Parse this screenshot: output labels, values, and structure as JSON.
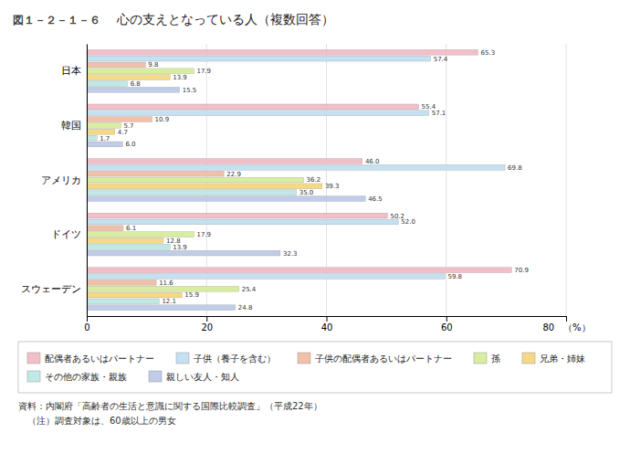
{
  "chart_data": {
    "type": "bar",
    "orientation": "horizontal",
    "title": "心の支えとなっている人（複数回答）",
    "subtitle": "図１－２－１－６",
    "annotations": [
      "資料：内閣府「高齢者の生活と意識に関する国際比較調査」（平成22年）",
      "　（注）調査対象は、60歳以上の男女"
    ],
    "categories": [
      "日本",
      "韓国",
      "アメリカ",
      "ドイツ",
      "スウェーデン"
    ],
    "series": [
      {
        "name": "配偶者あるいはパートナー",
        "color": "#f2bec8",
        "values": [
          65.3,
          55.4,
          46.0,
          50.2,
          70.9
        ],
        "value_labels": [
          "65.3",
          "55.4",
          "46.0",
          "50.2",
          "70.9"
        ]
      },
      {
        "name": "子供（養子を含む）",
        "color": "#c5e0f0",
        "values": [
          57.4,
          57.1,
          69.8,
          52.0,
          59.8
        ],
        "value_labels": [
          "57.4",
          "57.1",
          "69.8",
          "52.0",
          "59.8"
        ]
      },
      {
        "name": "子供の配偶者あるいはパートナー",
        "color": "#f0c0a8",
        "values": [
          9.8,
          10.9,
          22.9,
          6.1,
          11.6
        ],
        "value_labels": [
          "9.8",
          "10.9",
          "22.9",
          "6.1",
          "11.6"
        ]
      },
      {
        "name": "孫",
        "color": "#d8eda0",
        "values": [
          17.9,
          5.7,
          36.2,
          17.9,
          25.4
        ],
        "value_labels": [
          "17.9",
          "5.7",
          "36.2",
          "17.9",
          "25.4"
        ]
      },
      {
        "name": "兄弟・姉妹",
        "color": "#f5d888",
        "values": [
          13.9,
          4.7,
          39.3,
          12.8,
          15.9
        ],
        "value_labels": [
          "13.9",
          "4.7",
          "39.3",
          "12.8",
          "15.9"
        ]
      },
      {
        "name": "その他の家族・親族",
        "color": "#c0e8e4",
        "values": [
          6.8,
          1.7,
          35.0,
          13.9,
          12.1
        ],
        "value_labels": [
          "6.8",
          "1.7",
          "35.0",
          "13.9",
          "12.1"
        ]
      },
      {
        "name": "親しい友人・知人",
        "color": "#c0cce8",
        "values": [
          15.5,
          6.0,
          46.5,
          32.3,
          24.8
        ],
        "value_labels": [
          "15.5",
          "6.0",
          "46.5",
          "32.3",
          "24.8"
        ]
      }
    ],
    "xlim": [
      0,
      80
    ],
    "xticks": [
      0,
      20,
      40,
      60,
      {
        "value": 80,
        "label": "80　（%）"
      }
    ],
    "grid": true,
    "data_labels": true,
    "legend": "bottom"
  }
}
